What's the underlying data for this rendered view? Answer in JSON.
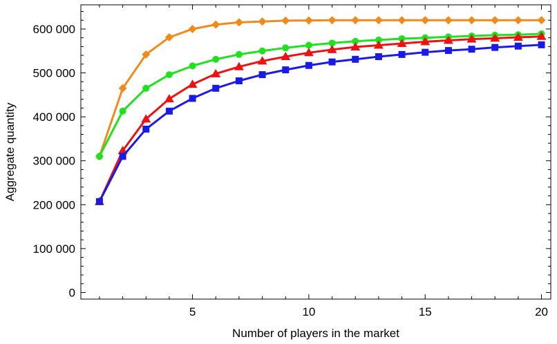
{
  "chart_data": {
    "type": "line",
    "xlabel": "Number of players in the market",
    "ylabel": "Aggregate quantity",
    "xlim": [
      0.2,
      20.4
    ],
    "ylim": [
      -15000,
      655000
    ],
    "x_ticks": [
      5,
      10,
      15,
      20
    ],
    "x_tick_labels": [
      "5",
      "10",
      "15",
      "20"
    ],
    "y_ticks": [
      0,
      100000,
      200000,
      300000,
      400000,
      500000,
      600000
    ],
    "y_tick_labels": [
      "0",
      "100 000",
      "200 000",
      "300 000",
      "400 000",
      "500 000",
      "600 000"
    ],
    "x": [
      1,
      2,
      3,
      4,
      5,
      6,
      7,
      8,
      9,
      10,
      11,
      12,
      13,
      14,
      15,
      16,
      17,
      18,
      19,
      20
    ],
    "grid": false,
    "series": [
      {
        "color": "#f28a1a",
        "marker": "diamond",
        "values": [
          310000,
          465000,
          542000,
          581000,
          600000,
          610000,
          615000,
          617000,
          619000,
          619500,
          620000,
          620000,
          620000,
          620000,
          620000,
          620000,
          620000,
          620000,
          620000,
          620000
        ]
      },
      {
        "color": "#1fe21f",
        "marker": "circle",
        "values": [
          310000,
          413000,
          465000,
          496000,
          516000,
          531000,
          542000,
          550000,
          557000,
          563000,
          568000,
          572000,
          575000,
          578000,
          580000,
          582000,
          584000,
          586000,
          587000,
          589000
        ]
      },
      {
        "color": "#ee1111",
        "marker": "triangle",
        "values": [
          207000,
          323000,
          395000,
          441000,
          474000,
          498000,
          514000,
          527000,
          537000,
          546000,
          553000,
          559000,
          563000,
          567000,
          571000,
          574000,
          577000,
          579000,
          581000,
          583000
        ]
      },
      {
        "color": "#1a1ae6",
        "marker": "square",
        "values": [
          207000,
          310000,
          372000,
          413000,
          442000,
          465000,
          482000,
          496000,
          507000,
          517000,
          525000,
          531000,
          537000,
          542000,
          547000,
          551000,
          554000,
          558000,
          561000,
          564000
        ]
      }
    ]
  }
}
